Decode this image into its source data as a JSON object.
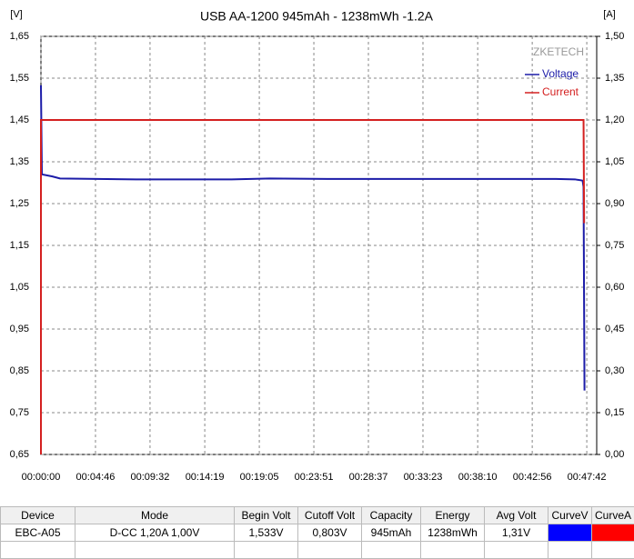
{
  "chart_data": {
    "type": "line",
    "title": "USB AA-1200  945mAh - 1238mWh -1.2A",
    "y_label": "[V]",
    "y2_label": "[A]",
    "watermark": "ZKETECH",
    "legend": "top-right",
    "grid": true,
    "xlim": [
      0,
      2914
    ],
    "xticks": [
      {
        "value": 0,
        "label": "00:00:00"
      },
      {
        "value": 286,
        "label": "00:04:46"
      },
      {
        "value": 572,
        "label": "00:09:32"
      },
      {
        "value": 859,
        "label": "00:14:19"
      },
      {
        "value": 1145,
        "label": "00:19:05"
      },
      {
        "value": 1431,
        "label": "00:23:51"
      },
      {
        "value": 1717,
        "label": "00:28:37"
      },
      {
        "value": 2003,
        "label": "00:33:23"
      },
      {
        "value": 2290,
        "label": "00:38:10"
      },
      {
        "value": 2576,
        "label": "00:42:56"
      },
      {
        "value": 2862,
        "label": "00:47:42"
      }
    ],
    "ylim": [
      0.65,
      1.65
    ],
    "yticks": [
      {
        "value": 0.65,
        "label": "0,65"
      },
      {
        "value": 0.75,
        "label": "0,75"
      },
      {
        "value": 0.85,
        "label": "0,85"
      },
      {
        "value": 0.95,
        "label": "0,95"
      },
      {
        "value": 1.05,
        "label": "1,05"
      },
      {
        "value": 1.15,
        "label": "1,15"
      },
      {
        "value": 1.25,
        "label": "1,25"
      },
      {
        "value": 1.35,
        "label": "1,35"
      },
      {
        "value": 1.45,
        "label": "1,45"
      },
      {
        "value": 1.55,
        "label": "1,55"
      },
      {
        "value": 1.65,
        "label": "1,65"
      }
    ],
    "y2lim": [
      0,
      1.5
    ],
    "y2ticks": [
      {
        "value": 0,
        "label": "0,00"
      },
      {
        "value": 0.15,
        "label": "0,15"
      },
      {
        "value": 0.3,
        "label": "0,30"
      },
      {
        "value": 0.45,
        "label": "0,45"
      },
      {
        "value": 0.6,
        "label": "0,60"
      },
      {
        "value": 0.75,
        "label": "0,75"
      },
      {
        "value": 0.9,
        "label": "0,90"
      },
      {
        "value": 1.05,
        "label": "1,05"
      },
      {
        "value": 1.2,
        "label": "1,20"
      },
      {
        "value": 1.35,
        "label": "1,35"
      },
      {
        "value": 1.5,
        "label": "1,50"
      }
    ],
    "series": [
      {
        "name": "Voltage",
        "color": "#1c1ca8",
        "x": [
          0,
          5,
          60,
          100,
          500,
          1000,
          1200,
          1500,
          2000,
          2500,
          2700,
          2800,
          2840,
          2845,
          2850
        ],
        "values": [
          1.533,
          1.32,
          1.315,
          1.31,
          1.308,
          1.308,
          1.31,
          1.309,
          1.309,
          1.309,
          1.309,
          1.308,
          1.305,
          1.29,
          0.803
        ]
      },
      {
        "name": "Current",
        "color": "#d42020",
        "axis": "y2",
        "x": [
          0,
          0,
          2845,
          2848
        ],
        "values": [
          0,
          1.2,
          1.2,
          0.83
        ]
      }
    ]
  },
  "table": {
    "header": [
      "Device",
      "Mode",
      "Begin Volt",
      "Cutoff Volt",
      "Capacity",
      "Energy",
      "Avg Volt",
      "CurveV",
      "CurveA"
    ],
    "rows": [
      [
        "EBC-A05",
        "D-CC  1,20A  1,00V",
        "1,533V",
        "0,803V",
        "945mAh",
        "1238mWh",
        "1,31V"
      ]
    ]
  }
}
